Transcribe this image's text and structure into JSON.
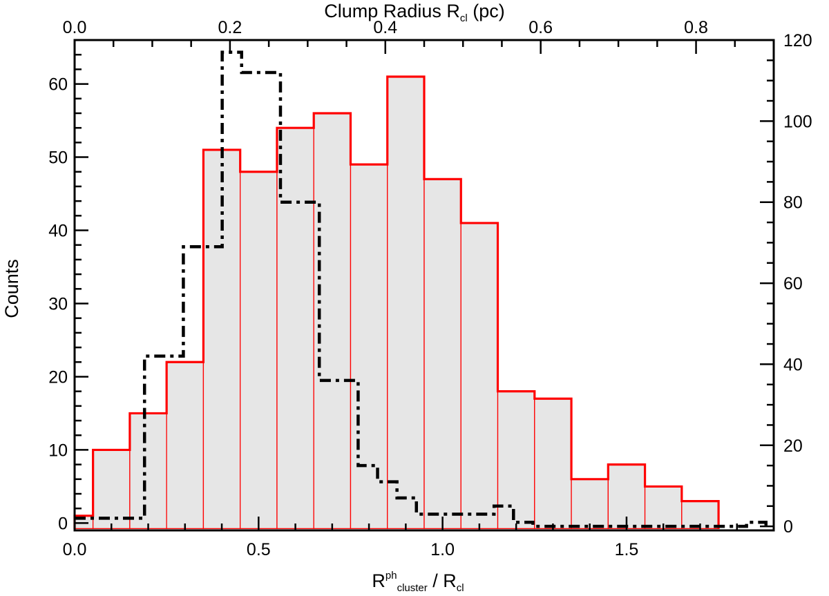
{
  "chart_data": {
    "type": "bar",
    "xlabel": {
      "main": "R",
      "sup": "ph",
      "sub": "cluster",
      "mid": " / R",
      "sub2": "cl"
    },
    "ylabel": "Counts",
    "top_xlabel": {
      "main": "Clump Radius R",
      "sub": "cl",
      "rest": " (pc)"
    },
    "xlim": [
      0.0,
      1.9
    ],
    "ylim": [
      -1,
      66
    ],
    "top_xlim": [
      0.0,
      0.9
    ],
    "right_ylim": [
      -1,
      120
    ],
    "x_ticks": [
      "0.0",
      "0.5",
      "1.0",
      "1.5"
    ],
    "x_tick_values": [
      0.0,
      0.5,
      1.0,
      1.5
    ],
    "y_ticks": [
      "0",
      "10",
      "20",
      "30",
      "40",
      "50",
      "60"
    ],
    "y_tick_values": [
      0,
      10,
      20,
      30,
      40,
      50,
      60
    ],
    "top_x_ticks": [
      "0.0",
      "0.2",
      "0.4",
      "0.6",
      "0.8"
    ],
    "top_x_tick_values": [
      0.0,
      0.2,
      0.4,
      0.6,
      0.8
    ],
    "right_y_ticks": [
      "0",
      "20",
      "40",
      "60",
      "80",
      "100",
      "120"
    ],
    "right_y_tick_values": [
      0,
      20,
      40,
      60,
      80,
      100,
      120
    ],
    "series": [
      {
        "axis": "bottom-left",
        "style": "filled-histogram",
        "color": "#ff0000",
        "fill": "#e6e6e6",
        "bin_edges": [
          0.0,
          0.05,
          0.15,
          0.25,
          0.35,
          0.45,
          0.55,
          0.65,
          0.75,
          0.85,
          0.95,
          1.05,
          1.15,
          1.25,
          1.35,
          1.45,
          1.55,
          1.65,
          1.75
        ],
        "values": [
          1,
          10,
          15,
          22,
          51,
          48,
          54,
          56,
          49,
          61,
          47,
          41,
          18,
          17,
          6,
          8,
          5,
          3
        ]
      },
      {
        "axis": "top-right",
        "style": "dash-dot-step",
        "color": "#000000",
        "bin_edges": [
          0.0,
          0.04,
          0.065,
          0.09,
          0.115,
          0.14,
          0.165,
          0.19,
          0.215,
          0.24,
          0.265,
          0.29,
          0.315,
          0.34,
          0.365,
          0.39,
          0.415,
          0.44,
          0.465,
          0.49,
          0.515,
          0.54,
          0.565,
          0.59,
          0.615,
          0.64,
          0.665,
          0.69,
          0.715,
          0.74,
          0.765,
          0.79,
          0.815,
          0.84,
          0.865,
          0.89
        ],
        "values": [
          2,
          2,
          2,
          42,
          42,
          69,
          69,
          117,
          112,
          112,
          80,
          80,
          36,
          36,
          15,
          11,
          7,
          3,
          3,
          3,
          3,
          5,
          1,
          0,
          0,
          0,
          0,
          0,
          0,
          0,
          0,
          0,
          0,
          0,
          1,
          0
        ]
      }
    ]
  }
}
